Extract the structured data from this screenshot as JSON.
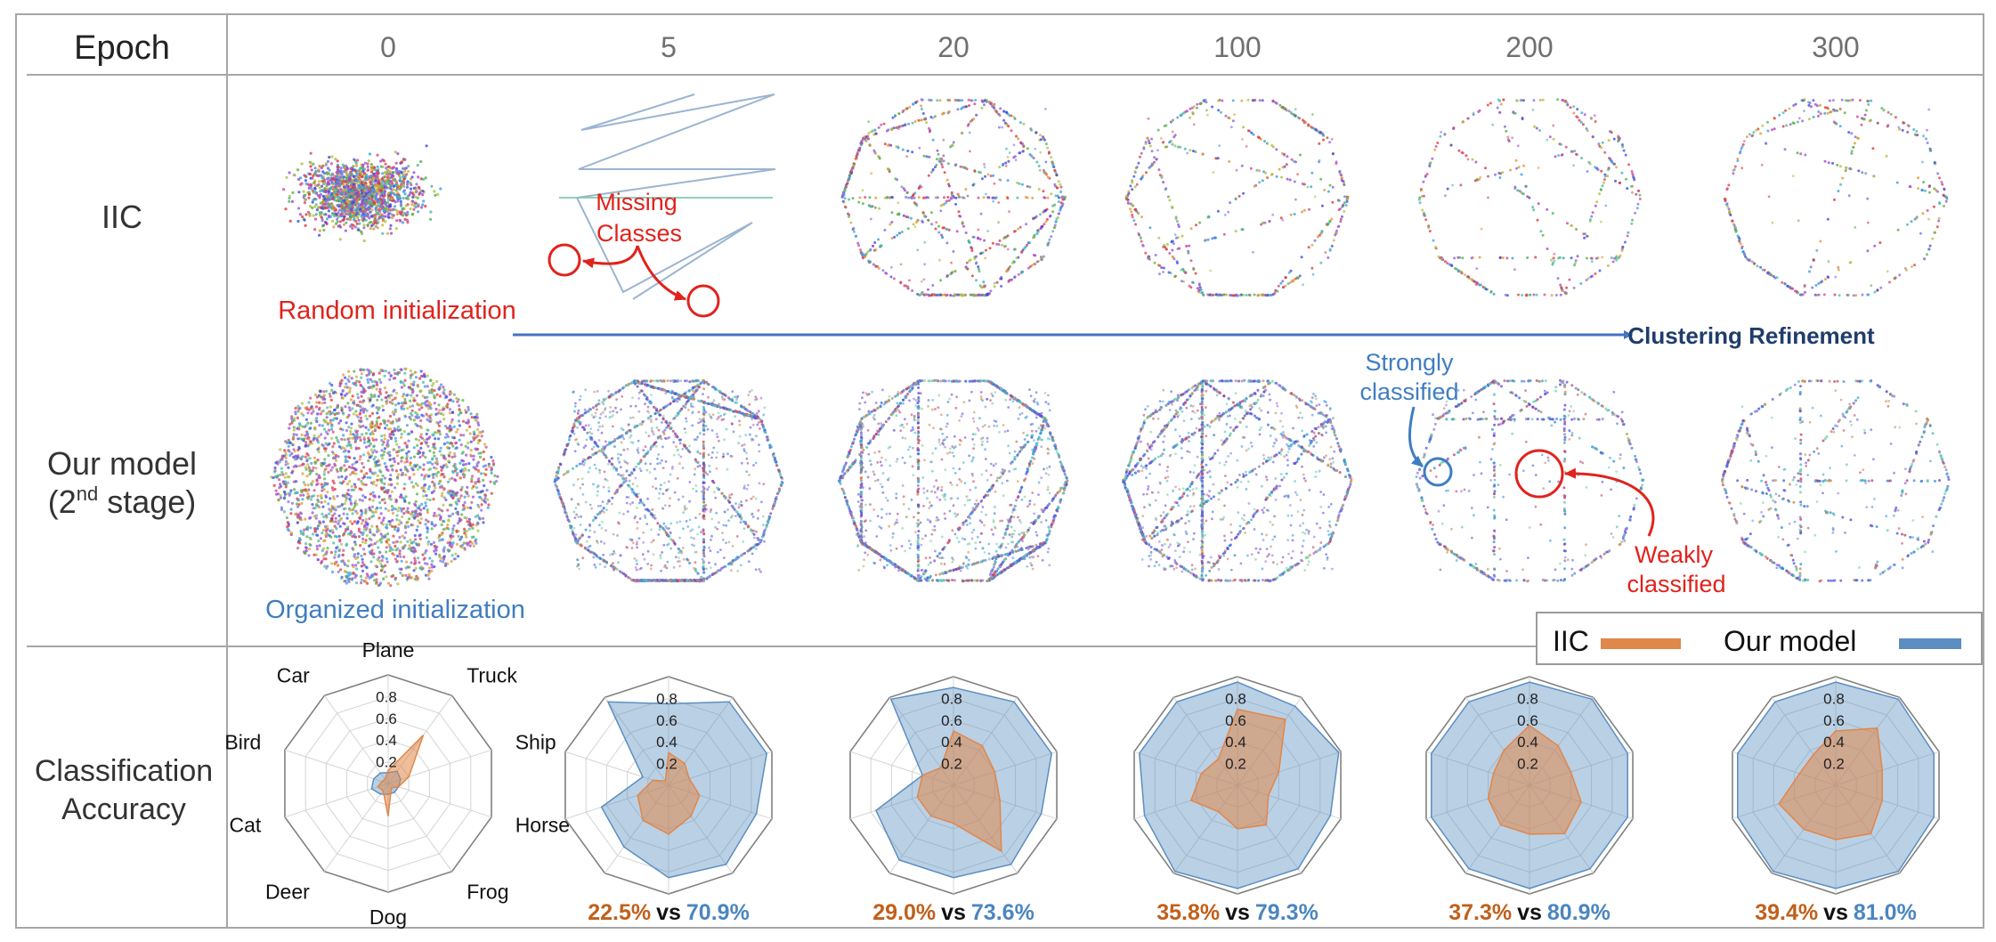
{
  "header": {
    "epoch_label": "Epoch",
    "epochs": [
      "0",
      "5",
      "20",
      "100",
      "200",
      "300"
    ]
  },
  "rows": {
    "iic": "IIC",
    "ours_line1": "Our model",
    "ours_line2_prefix": "(2",
    "ours_line2_sup": "nd",
    "ours_line2_suffix": " stage)",
    "acc_line1": "Classification",
    "acc_line2": "Accuracy"
  },
  "annotations": {
    "missing_line1": "Missing",
    "missing_line2": "Classes",
    "random_init": "Random initialization",
    "clustering_refinement": "Clustering Refinement",
    "strongly_line1": "Strongly",
    "strongly_line2": "classified",
    "weakly_line1": "Weakly",
    "weakly_line2": "classified",
    "organized_init": "Organized initialization"
  },
  "legend": {
    "iic": "IIC",
    "ours": "Our model"
  },
  "colors": {
    "iic": "#e0874a",
    "ours": "#5b8ec1",
    "annotation_red": "#e0231c",
    "annotation_blue": "#3f7dc0",
    "arrow_blue": "#4472c4",
    "refinement_text": "#1f3d6b",
    "iic_pct": "#c0601a",
    "ours_pct": "#4a86c0"
  },
  "chart_data": {
    "type": "radar",
    "axes": [
      "Plane",
      "Truck",
      "Ship",
      "Horse",
      "Frog",
      "Dog",
      "Deer",
      "Cat",
      "Bird",
      "Car"
    ],
    "rticks": [
      "0.2",
      "0.4",
      "0.6",
      "0.8"
    ],
    "rlim": [
      0,
      1
    ],
    "series_names": [
      "IIC",
      "Our model"
    ],
    "panels": [
      {
        "epoch": "0",
        "iic": [
          0.12,
          0.55,
          0.2,
          0.1,
          0.05,
          0.3,
          0.08,
          0.1,
          0.06,
          0.05
        ],
        "ours": [
          0.1,
          0.14,
          0.12,
          0.1,
          0.1,
          0.1,
          0.12,
          0.16,
          0.14,
          0.12
        ],
        "iic_pct": "",
        "vs": "",
        "ours_pct": ""
      },
      {
        "epoch": "5",
        "iic": [
          0.3,
          0.25,
          0.2,
          0.3,
          0.35,
          0.45,
          0.4,
          0.3,
          0.15,
          0.05
        ],
        "ours": [
          0.75,
          0.95,
          0.95,
          0.85,
          0.9,
          0.85,
          0.7,
          0.65,
          0.25,
          0.95
        ],
        "iic_pct": "22.5%",
        "vs": "vs",
        "ours_pct": "70.9%"
      },
      {
        "epoch": "20",
        "iic": [
          0.5,
          0.45,
          0.4,
          0.45,
          0.75,
          0.35,
          0.35,
          0.35,
          0.3,
          0.2
        ],
        "ours": [
          0.9,
          0.95,
          0.95,
          0.85,
          0.9,
          0.85,
          0.85,
          0.75,
          0.3,
          0.98
        ],
        "iic_pct": "29.0%",
        "vs": "vs",
        "ours_pct": "73.6%"
      },
      {
        "epoch": "100",
        "iic": [
          0.7,
          0.75,
          0.4,
          0.3,
          0.45,
          0.4,
          0.3,
          0.45,
          0.35,
          0.3
        ],
        "ours": [
          0.95,
          0.9,
          0.98,
          0.9,
          0.95,
          0.95,
          0.98,
          0.9,
          0.95,
          0.95
        ],
        "iic_pct": "35.8%",
        "vs": "vs",
        "ours_pct": "79.3%"
      },
      {
        "epoch": "200",
        "iic": [
          0.55,
          0.45,
          0.4,
          0.5,
          0.55,
          0.45,
          0.45,
          0.4,
          0.35,
          0.4
        ],
        "ours": [
          0.95,
          0.98,
          0.95,
          0.95,
          0.95,
          0.95,
          0.95,
          0.95,
          0.95,
          0.95
        ],
        "iic_pct": "37.3%",
        "vs": "vs",
        "ours_pct": "80.9%"
      },
      {
        "epoch": "300",
        "iic": [
          0.5,
          0.65,
          0.45,
          0.45,
          0.55,
          0.5,
          0.5,
          0.55,
          0.35,
          0.35
        ],
        "ours": [
          0.95,
          0.98,
          0.95,
          0.95,
          0.98,
          0.95,
          0.98,
          0.95,
          0.95,
          0.95
        ],
        "iic_pct": "39.4%",
        "vs": "vs",
        "ours_pct": "81.0%"
      }
    ]
  }
}
